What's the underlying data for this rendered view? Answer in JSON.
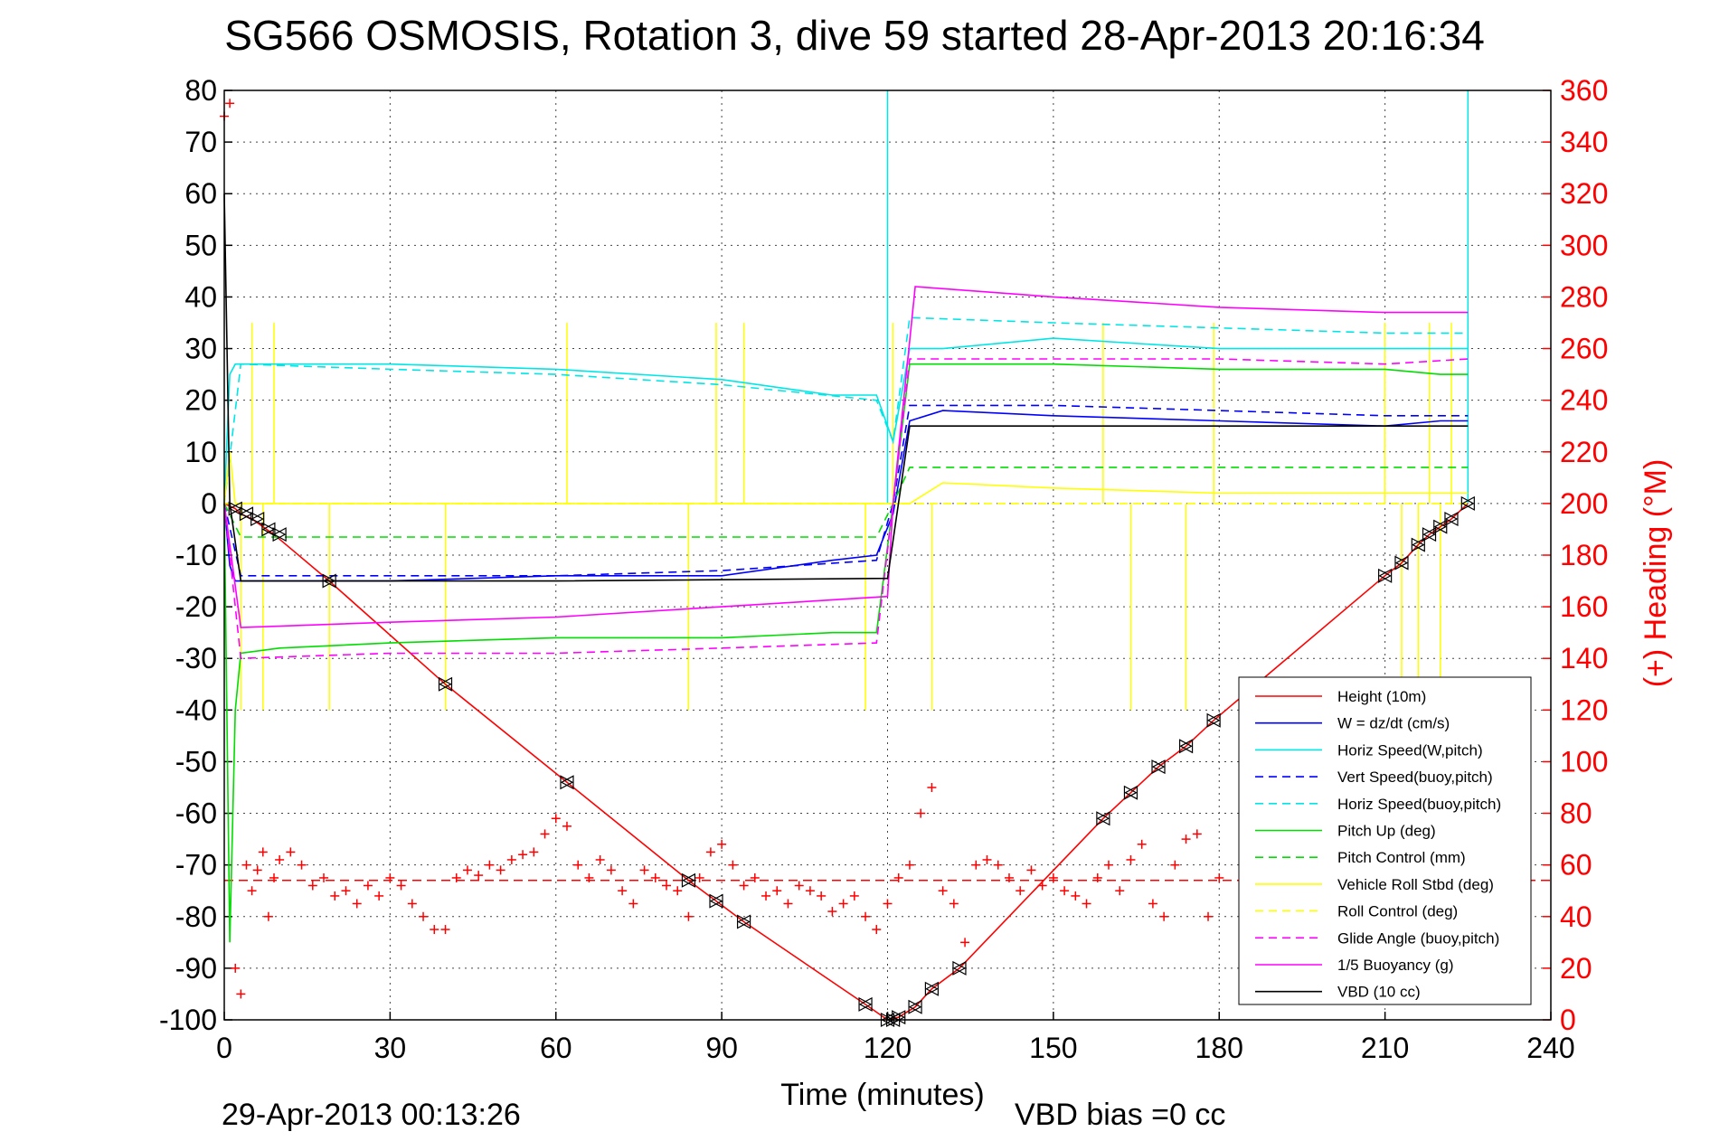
{
  "chart_data": {
    "type": "line",
    "title": "SG566 OSMOSIS, Rotation 3, dive 59 started 28-Apr-2013 20:16:34",
    "xlabel": "Time (minutes)",
    "ylabel_right": "(+) Heading (°M)",
    "footer_left": "29-Apr-2013 00:13:26",
    "footer_right": "VBD bias =0 cc",
    "xlim": [
      0,
      240
    ],
    "ylim": [
      -100,
      80
    ],
    "ylim_right": [
      0,
      360
    ],
    "x_ticks": [
      "0",
      "30",
      "60",
      "90",
      "120",
      "150",
      "180",
      "210",
      "240"
    ],
    "y_ticks": [
      "80",
      "70",
      "60",
      "50",
      "40",
      "30",
      "20",
      "10",
      "0",
      "-10",
      "-20",
      "-30",
      "-40",
      "-50",
      "-60",
      "-70",
      "-80",
      "-90",
      "-100"
    ],
    "y_ticks_right": [
      "360",
      "340",
      "320",
      "300",
      "280",
      "260",
      "240",
      "220",
      "200",
      "180",
      "160",
      "140",
      "120",
      "100",
      "80",
      "60",
      "40",
      "20",
      "0"
    ],
    "grid": true,
    "legend_position": "lower-right",
    "series": [
      {
        "name": "Height (10m)",
        "color": "#ff0000",
        "style": "solid",
        "x": [
          0,
          1,
          2,
          3,
          5,
          7,
          9,
          19,
          40,
          62,
          84,
          89,
          94,
          116,
          120,
          122,
          125,
          128,
          133,
          159,
          164,
          169,
          174,
          179,
          210,
          213,
          216,
          218,
          220,
          222,
          225
        ],
        "y": [
          0,
          -0.5,
          -1,
          -2,
          -3,
          -4.5,
          -6,
          -15,
          -35,
          -54,
          -73,
          -77,
          -81,
          -97,
          -100,
          -99.5,
          -97.5,
          -94,
          -90,
          -61,
          -56,
          -51,
          -47,
          -42,
          -14,
          -11.5,
          -8,
          -6,
          -4.5,
          -3,
          0
        ]
      },
      {
        "name": "W = dz/dt (cm/s)",
        "color": "#0000ff",
        "style": "solid",
        "x": [
          0,
          1,
          2,
          3,
          10,
          30,
          60,
          90,
          110,
          118,
          121,
          124,
          130,
          150,
          180,
          210,
          220,
          225
        ],
        "y": [
          0,
          -12,
          -15,
          -15,
          -15,
          -15,
          -14,
          -14,
          -11,
          -10,
          -2,
          16,
          18,
          17,
          16,
          15,
          16,
          16
        ]
      },
      {
        "name": "Horiz Speed(W,pitch)",
        "color": "#00e5e5",
        "style": "solid",
        "x": [
          0,
          1,
          2,
          3,
          10,
          30,
          60,
          90,
          110,
          118,
          121,
          124,
          130,
          150,
          180,
          210,
          220,
          225
        ],
        "y": [
          0,
          25,
          27,
          27,
          27,
          27,
          26,
          24,
          21,
          21,
          12,
          30,
          30,
          32,
          30,
          30,
          30,
          30
        ]
      },
      {
        "name": "Vert Speed(buoy,pitch)",
        "color": "#0000ff",
        "style": "dashed",
        "x": [
          0,
          3,
          30,
          60,
          90,
          118,
          121,
          124,
          150,
          180,
          210,
          225
        ],
        "y": [
          0,
          -14,
          -14,
          -14,
          -13,
          -11,
          0,
          19,
          19,
          18,
          17,
          17
        ]
      },
      {
        "name": "Horiz Speed(buoy,pitch)",
        "color": "#00e5e5",
        "style": "dashed",
        "x": [
          0,
          3,
          30,
          60,
          90,
          118,
          121,
          124,
          150,
          180,
          210,
          225
        ],
        "y": [
          0,
          27,
          26,
          25,
          23,
          20,
          12,
          36,
          35,
          34,
          33,
          33
        ]
      },
      {
        "name": "Pitch Up (deg)",
        "color": "#00dd00",
        "style": "solid",
        "x": [
          0,
          1,
          2,
          3,
          10,
          30,
          60,
          90,
          110,
          118,
          121,
          124,
          130,
          150,
          180,
          210,
          220,
          225
        ],
        "y": [
          0,
          -85,
          -40,
          -29,
          -28,
          -27,
          -26,
          -26,
          -25,
          -25,
          0,
          27,
          27,
          27,
          26,
          26,
          25,
          25
        ]
      },
      {
        "name": "Pitch Control (mm)",
        "color": "#00dd00",
        "style": "dashed",
        "x": [
          0,
          3,
          30,
          60,
          90,
          118,
          121,
          124,
          150,
          180,
          210,
          225
        ],
        "y": [
          0,
          -6.5,
          -6.5,
          -6.5,
          -6.5,
          -6.5,
          0,
          7,
          7,
          7,
          7,
          7
        ]
      },
      {
        "name": "Vehicle Roll Stbd (deg)",
        "color": "#ffff00",
        "style": "solid",
        "x": [
          0,
          1,
          2,
          3,
          10,
          30,
          60,
          90,
          110,
          118,
          121,
          124,
          130,
          150,
          180,
          210,
          220,
          225
        ],
        "y": [
          0,
          10,
          0,
          0,
          0,
          0,
          0,
          0,
          0,
          0,
          0,
          0,
          4,
          3,
          2,
          2,
          2,
          2
        ]
      },
      {
        "name": "Roll Control (deg)",
        "color": "#ffff00",
        "style": "dashed",
        "x": [
          0,
          3,
          30,
          60,
          90,
          118,
          121,
          124,
          150,
          180,
          210,
          225
        ],
        "y": [
          0,
          0,
          0,
          0,
          0,
          0,
          0,
          0,
          0,
          0,
          0,
          0
        ]
      },
      {
        "name": "Glide Angle (buoy,pitch)",
        "color": "#ff00ff",
        "style": "dashed",
        "x": [
          0,
          3,
          30,
          60,
          90,
          118,
          121,
          124,
          150,
          180,
          210,
          225
        ],
        "y": [
          0,
          -30,
          -29,
          -29,
          -28,
          -27,
          0,
          28,
          28,
          28,
          27,
          28
        ]
      },
      {
        "name": "1/5 Buoyancy (g)",
        "color": "#ff00ff",
        "style": "solid",
        "x": [
          0,
          3,
          30,
          60,
          90,
          120,
          121,
          125,
          150,
          180,
          210,
          225
        ],
        "y": [
          0,
          -24,
          -23,
          -22,
          -20,
          -18,
          0,
          42,
          40,
          38,
          37,
          37
        ]
      },
      {
        "name": "VBD (10 cc)",
        "color": "#000000",
        "style": "solid",
        "x": [
          0,
          1,
          3,
          20,
          60,
          120,
          124,
          150,
          180,
          210,
          225
        ],
        "y": [
          60,
          0,
          -15,
          -15,
          -15,
          -14.5,
          15,
          15,
          15,
          15,
          15
        ]
      }
    ],
    "heading_points": {
      "marker": "+",
      "color": "#ff0000",
      "axis": "right",
      "x": [
        0,
        1,
        2,
        3,
        4,
        5,
        6,
        7,
        8,
        9,
        10,
        12,
        14,
        16,
        18,
        20,
        22,
        24,
        26,
        28,
        30,
        32,
        34,
        36,
        38,
        40,
        42,
        44,
        46,
        48,
        50,
        52,
        54,
        56,
        58,
        60,
        62,
        64,
        66,
        68,
        70,
        72,
        74,
        76,
        78,
        80,
        82,
        84,
        86,
        88,
        90,
        92,
        94,
        96,
        98,
        100,
        102,
        104,
        106,
        108,
        110,
        112,
        114,
        116,
        118,
        120,
        122,
        124,
        126,
        128,
        130,
        132,
        134,
        136,
        138,
        140,
        142,
        144,
        146,
        148,
        150,
        152,
        154,
        156,
        158,
        160,
        162,
        164,
        166,
        168,
        170,
        172,
        174,
        176,
        178,
        180
      ],
      "y": [
        350,
        355,
        20,
        10,
        60,
        50,
        58,
        65,
        40,
        55,
        62,
        65,
        60,
        52,
        55,
        48,
        50,
        45,
        52,
        48,
        55,
        52,
        45,
        40,
        35,
        35,
        55,
        58,
        56,
        60,
        58,
        62,
        64,
        65,
        72,
        78,
        75,
        60,
        55,
        62,
        58,
        50,
        45,
        58,
        55,
        52,
        50,
        40,
        55,
        65,
        68,
        60,
        52,
        55,
        48,
        50,
        45,
        52,
        50,
        48,
        42,
        45,
        48,
        40,
        35,
        45,
        55,
        60,
        80,
        90,
        50,
        45,
        30,
        60,
        62,
        60,
        55,
        50,
        58,
        52,
        55,
        50,
        48,
        45,
        55,
        60,
        50,
        62,
        68,
        45,
        40,
        60,
        70,
        72,
        40,
        55
      ]
    },
    "heading_target": {
      "axis": "right",
      "value": 54,
      "color": "#ff0000",
      "style": "dashed"
    },
    "waypoint_markers": {
      "marker": "triangle",
      "color": "#000000",
      "x": [
        2,
        4,
        6,
        8,
        10,
        19,
        40,
        62,
        84,
        89,
        94,
        116,
        120,
        121,
        122,
        125,
        128,
        133,
        159,
        164,
        169,
        174,
        179,
        210,
        213,
        216,
        218,
        220,
        222,
        225
      ],
      "y": [
        -1,
        -2,
        -3,
        -5,
        -6,
        -15,
        -35,
        -54,
        -73,
        -77,
        -81,
        -97,
        -100,
        -100,
        -99.5,
        -97.5,
        -94,
        -90,
        -61,
        -56,
        -51,
        -47,
        -42,
        -14,
        -11.5,
        -8,
        -6,
        -4.5,
        -3,
        0
      ]
    },
    "spikes": [
      {
        "color": "#ffff00",
        "x": [
          3,
          5,
          7,
          9,
          19,
          40,
          62,
          84,
          89,
          94,
          116,
          121,
          128,
          159,
          164,
          174,
          179,
          210,
          213,
          216,
          218,
          220,
          222
        ],
        "y": [
          -40,
          35,
          -40,
          35,
          -40,
          -40,
          35,
          -40,
          35,
          35,
          -40,
          35,
          -40,
          35,
          -40,
          -40,
          35,
          35,
          -40,
          -40,
          35,
          -40,
          35
        ]
      },
      {
        "color": "#00e5e5",
        "x": [
          120,
          225
        ],
        "y": [
          80,
          80
        ]
      }
    ]
  }
}
